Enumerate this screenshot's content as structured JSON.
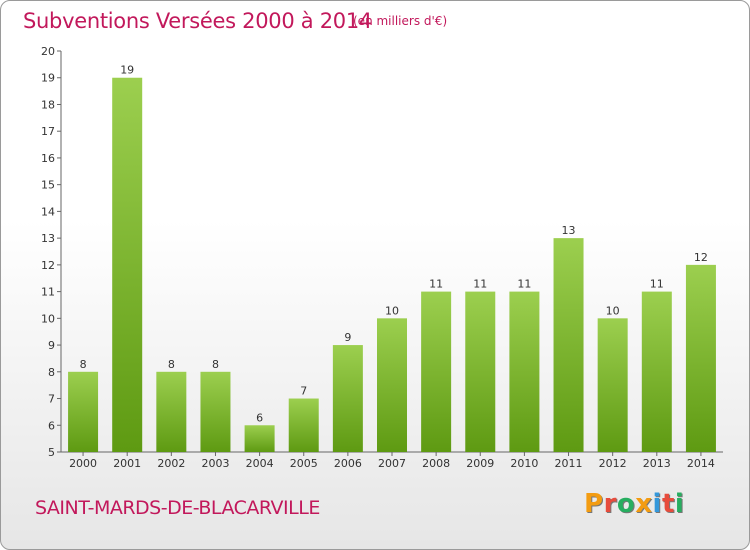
{
  "title": "Subventions Versées 2000 à 2014",
  "subtitle": "(en milliers d'€)",
  "commune": "SAINT-MARDS-DE-BLACARVILLE",
  "logo_text": "Proxiti",
  "colors": {
    "title": "#c2185b",
    "bar_light": "#9ccf4f",
    "bar_dark": "#5e9a12",
    "logo": [
      "#f39c12",
      "#e74c3c",
      "#27ae60",
      "#f39c12",
      "#3498db",
      "#e74c3c",
      "#27ae60"
    ]
  },
  "chart_data": {
    "type": "bar",
    "title": "Subventions Versées 2000 à 2014",
    "subtitle": "(en milliers d'€)",
    "categories": [
      "2000",
      "2001",
      "2002",
      "2003",
      "2004",
      "2005",
      "2006",
      "2007",
      "2008",
      "2009",
      "2010",
      "2011",
      "2012",
      "2013",
      "2014"
    ],
    "values": [
      8,
      19,
      8,
      8,
      6,
      7,
      9,
      10,
      11,
      11,
      11,
      13,
      10,
      11,
      12
    ],
    "ylim": [
      5,
      20
    ],
    "yticks": [
      5,
      6,
      7,
      8,
      9,
      10,
      11,
      12,
      13,
      14,
      15,
      16,
      17,
      18,
      19,
      20
    ],
    "grid": false,
    "data_labels": true
  }
}
